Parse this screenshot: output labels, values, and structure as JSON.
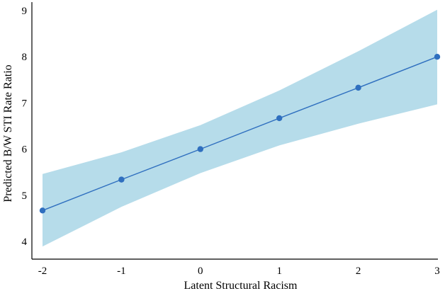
{
  "chart_data": {
    "type": "line",
    "title": "",
    "xlabel": "Latent Structural Racism",
    "ylabel": "Predicted B/W STI Rate Ratio",
    "xlim": [
      -2,
      3
    ],
    "ylim": [
      3.75,
      9.2
    ],
    "x_ticks": [
      -2,
      -1,
      0,
      1,
      2,
      3
    ],
    "y_ticks": [
      4,
      5,
      6,
      7,
      8,
      9
    ],
    "x_tick_labels": [
      "-2",
      "-1",
      "0",
      "1",
      "2",
      "3"
    ],
    "y_tick_labels": [
      "4",
      "5",
      "6",
      "7",
      "8",
      "9"
    ],
    "grid": false,
    "legend": "none",
    "series": [
      {
        "x": [
          -2,
          -1,
          0,
          1,
          2,
          3
        ],
        "y": [
          4.67,
          5.34,
          6.0,
          6.67,
          7.33,
          8.0
        ],
        "lower": [
          3.89,
          4.75,
          5.48,
          6.08,
          6.55,
          6.97
        ],
        "upper": [
          5.46,
          5.93,
          6.52,
          7.27,
          8.12,
          9.02
        ],
        "line_color": "#2f6fbf",
        "band_color": "#a9d6e6"
      }
    ]
  }
}
